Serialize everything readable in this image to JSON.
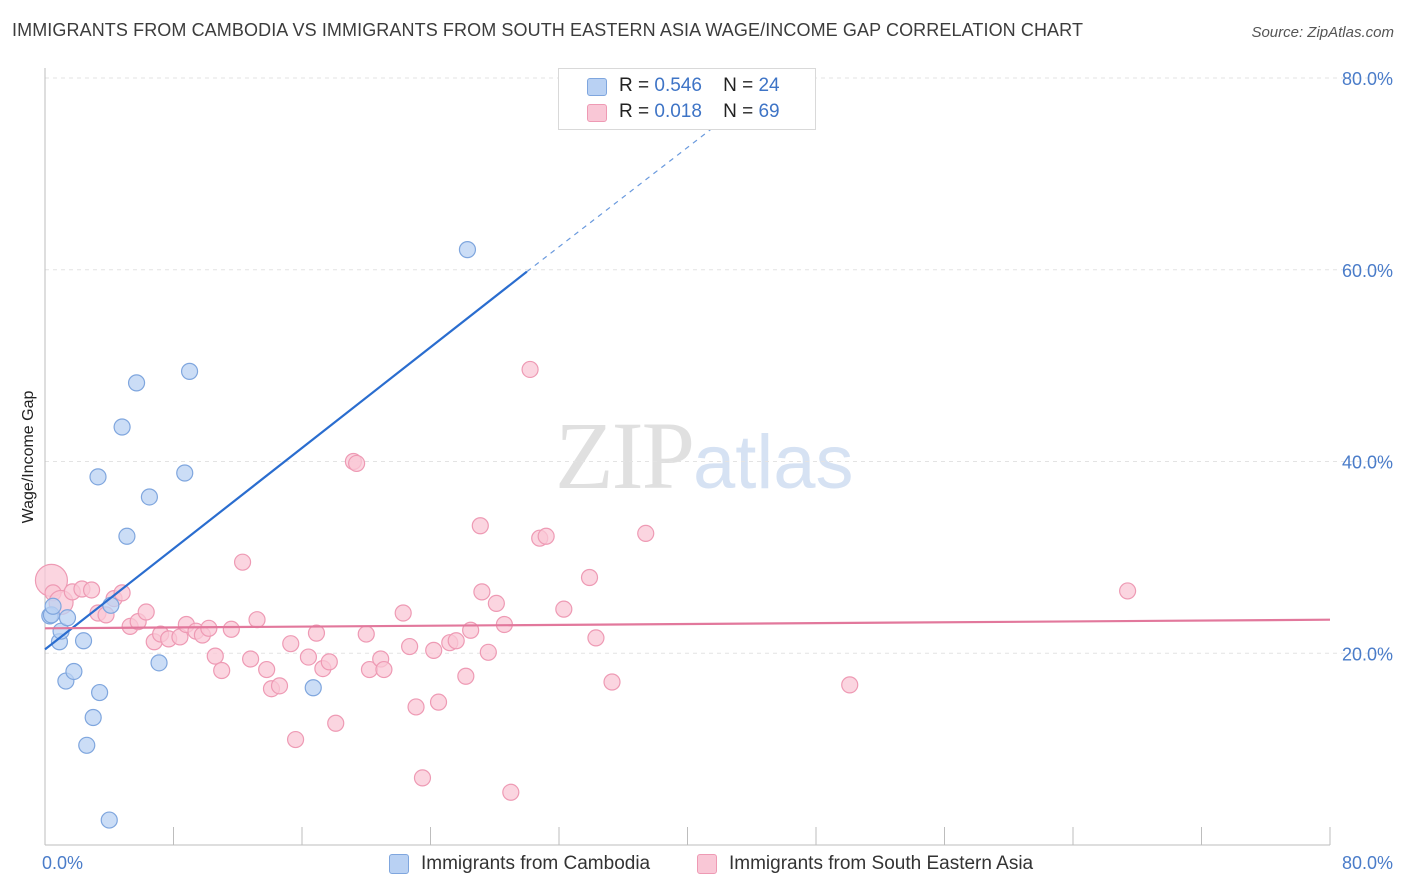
{
  "header": {
    "title": "IMMIGRANTS FROM CAMBODIA VS IMMIGRANTS FROM SOUTH EASTERN ASIA WAGE/INCOME GAP CORRELATION CHART",
    "source": "Source: ZipAtlas.com"
  },
  "watermark": {
    "zip": "ZIP",
    "atlas": "atlas"
  },
  "legend_top": {
    "rows": [
      {
        "r_label": "R =",
        "r_value": "0.546",
        "n_label": "N =",
        "n_value": "24"
      },
      {
        "r_label": "R =",
        "r_value": "0.018",
        "n_label": "N =",
        "n_value": "69"
      }
    ]
  },
  "legend_bottom": {
    "items": [
      {
        "label": "Immigrants from Cambodia"
      },
      {
        "label": "Immigrants from South Eastern Asia"
      }
    ]
  },
  "colors": {
    "cambodia_fill": "#b9d1f3",
    "cambodia_stroke": "#7fa6de",
    "cambodia_line": "#2a6dcf",
    "sea_fill": "#f9c7d6",
    "sea_stroke": "#ee9ab4",
    "sea_line": "#e2789c",
    "grid": "#e3e3e3",
    "tick_text": "#4a7cc9"
  },
  "chart_data": {
    "type": "scatter",
    "title": "IMMIGRANTS FROM CAMBODIA VS IMMIGRANTS FROM SOUTH EASTERN ASIA WAGE/INCOME GAP CORRELATION CHART",
    "xlabel": "",
    "ylabel": "Wage/Income Gap",
    "xlim": [
      0,
      80
    ],
    "ylim": [
      0,
      80
    ],
    "x_tick_labels": [
      "0.0%",
      "80.0%"
    ],
    "y_ticks": [
      20,
      40,
      60,
      80
    ],
    "y_tick_labels": [
      "20.0%",
      "40.0%",
      "60.0%",
      "80.0%"
    ],
    "grid": true,
    "legend_placement": "top-center",
    "series": [
      {
        "name": "Immigrants from Cambodia",
        "R": 0.546,
        "N": 24,
        "trend": {
          "x0": 0,
          "y0": 20.4,
          "x1": 30.0,
          "y1": 59.8,
          "dashed_to_x": 42.5,
          "dashed_to_y": 76.0
        },
        "points": [
          [
            0.3,
            23.9
          ],
          [
            0.4,
            24.0
          ],
          [
            0.5,
            24.9
          ],
          [
            0.9,
            21.2
          ],
          [
            1.0,
            22.3
          ],
          [
            1.3,
            17.1
          ],
          [
            1.4,
            23.7
          ],
          [
            1.8,
            18.1
          ],
          [
            2.4,
            21.3
          ],
          [
            2.6,
            10.4
          ],
          [
            3.0,
            13.3
          ],
          [
            3.4,
            15.9
          ],
          [
            3.3,
            38.4
          ],
          [
            4.0,
            2.6
          ],
          [
            4.1,
            25.0
          ],
          [
            4.8,
            43.6
          ],
          [
            5.1,
            32.2
          ],
          [
            5.7,
            48.2
          ],
          [
            6.5,
            36.3
          ],
          [
            7.1,
            19.0
          ],
          [
            8.7,
            38.8
          ],
          [
            9.0,
            49.4
          ],
          [
            16.7,
            16.4
          ],
          [
            26.3,
            62.1
          ]
        ]
      },
      {
        "name": "Immigrants from South Eastern Asia",
        "R": 0.018,
        "N": 69,
        "trend": {
          "x0": 0,
          "y0": 22.6,
          "x1": 80,
          "y1": 23.5
        },
        "points": [
          [
            0.4,
            27.6
          ],
          [
            0.5,
            26.3
          ],
          [
            1.0,
            25.3
          ],
          [
            1.7,
            26.4
          ],
          [
            2.3,
            26.7
          ],
          [
            2.9,
            26.6
          ],
          [
            3.3,
            24.2
          ],
          [
            3.8,
            24.0
          ],
          [
            4.3,
            25.7
          ],
          [
            4.8,
            26.3
          ],
          [
            5.3,
            22.8
          ],
          [
            5.8,
            23.3
          ],
          [
            6.3,
            24.3
          ],
          [
            6.8,
            21.2
          ],
          [
            7.2,
            22.0
          ],
          [
            7.7,
            21.5
          ],
          [
            8.4,
            21.7
          ],
          [
            8.8,
            23.0
          ],
          [
            9.4,
            22.3
          ],
          [
            9.8,
            21.9
          ],
          [
            10.2,
            22.6
          ],
          [
            10.6,
            19.7
          ],
          [
            11.0,
            18.2
          ],
          [
            11.6,
            22.5
          ],
          [
            12.3,
            29.5
          ],
          [
            12.8,
            19.4
          ],
          [
            13.2,
            23.5
          ],
          [
            13.8,
            18.3
          ],
          [
            14.1,
            16.3
          ],
          [
            14.6,
            16.6
          ],
          [
            15.3,
            21.0
          ],
          [
            15.6,
            11.0
          ],
          [
            16.4,
            19.6
          ],
          [
            16.9,
            22.1
          ],
          [
            17.3,
            18.4
          ],
          [
            17.7,
            19.1
          ],
          [
            18.1,
            12.7
          ],
          [
            19.2,
            40.0
          ],
          [
            19.4,
            39.8
          ],
          [
            20.0,
            22.0
          ],
          [
            20.2,
            18.3
          ],
          [
            20.9,
            19.4
          ],
          [
            21.1,
            18.3
          ],
          [
            22.3,
            24.2
          ],
          [
            22.7,
            20.7
          ],
          [
            23.1,
            14.4
          ],
          [
            23.5,
            7.0
          ],
          [
            24.2,
            20.3
          ],
          [
            24.5,
            14.9
          ],
          [
            25.2,
            21.1
          ],
          [
            25.6,
            21.3
          ],
          [
            26.2,
            17.6
          ],
          [
            26.5,
            22.4
          ],
          [
            27.1,
            33.3
          ],
          [
            27.2,
            26.4
          ],
          [
            27.6,
            20.1
          ],
          [
            28.1,
            25.2
          ],
          [
            28.6,
            23.0
          ],
          [
            29.0,
            5.5
          ],
          [
            30.2,
            49.6
          ],
          [
            30.8,
            32.0
          ],
          [
            31.2,
            32.2
          ],
          [
            32.3,
            24.6
          ],
          [
            33.9,
            27.9
          ],
          [
            34.3,
            21.6
          ],
          [
            35.3,
            17.0
          ],
          [
            37.4,
            32.5
          ],
          [
            50.1,
            16.7
          ],
          [
            67.4,
            26.5
          ]
        ]
      }
    ]
  }
}
